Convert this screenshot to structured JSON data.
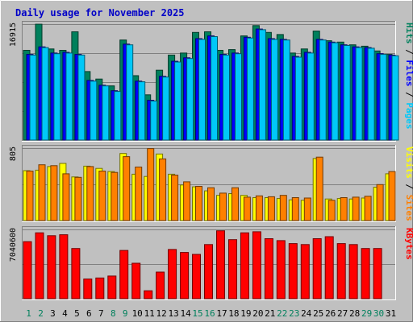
{
  "chart_data": {
    "type": "bar",
    "title": "Daily usage for November 2025",
    "categories": [
      "1",
      "2",
      "3",
      "4",
      "5",
      "6",
      "7",
      "8",
      "9",
      "10",
      "11",
      "12",
      "13",
      "14",
      "15",
      "16",
      "17",
      "18",
      "19",
      "20",
      "21",
      "22",
      "23",
      "24",
      "25",
      "26",
      "27",
      "28",
      "29",
      "30",
      "31"
    ],
    "weekend_categories": [
      "1",
      "2",
      "8",
      "9",
      "15",
      "16",
      "22",
      "23",
      "29",
      "30"
    ],
    "panels": [
      {
        "name": "hits-files-pages",
        "ymax_label": "16915",
        "ylim": [
          0,
          16915
        ],
        "right_labels": [
          {
            "text": "Hits",
            "color": "#00805c"
          },
          {
            "text": "Files",
            "color": "#0000ff"
          },
          {
            "text": "Pages",
            "color": "#00c8f8"
          }
        ],
        "series": [
          {
            "name": "Hits",
            "color": "#00805c",
            "values": [
              13100,
              16900,
              13300,
              13100,
              15800,
              10000,
              8900,
              7900,
              14600,
              9400,
              6600,
              10200,
              12400,
              12700,
              15700,
              15800,
              13100,
              13200,
              15200,
              16700,
              15700,
              15400,
              12700,
              13300,
              15900,
              14500,
              14300,
              13900,
              13700,
              13000,
              12500
            ]
          },
          {
            "name": "Files",
            "color": "#0000ff",
            "values": [
              12500,
              13600,
              12700,
              12800,
              12500,
              8700,
              8000,
              7200,
              14000,
              8600,
              5800,
              9300,
              11500,
              12000,
              14800,
              15200,
              12500,
              12700,
              15000,
              16200,
              14800,
              14700,
              12200,
              12800,
              14700,
              14300,
              13900,
              13600,
              13500,
              12600,
              12400
            ]
          },
          {
            "name": "Pages",
            "color": "#00c8f8",
            "values": [
              12400,
              13500,
              12600,
              12700,
              12400,
              8600,
              7900,
              7100,
              13900,
              8500,
              5700,
              9200,
              11400,
              11900,
              14700,
              15100,
              12400,
              12600,
              14900,
              16100,
              14700,
              14600,
              12100,
              12700,
              14600,
              14200,
              13800,
              13500,
              13400,
              12500,
              12300
            ]
          }
        ]
      },
      {
        "name": "visits-sites",
        "ymax_label": "805",
        "ylim": [
          0,
          805
        ],
        "right_labels": [
          {
            "text": "Visits",
            "color": "#ffff00"
          },
          {
            "text": "Sites",
            "color": "#ff8000"
          }
        ],
        "series": [
          {
            "name": "Visits",
            "color": "#ffff00",
            "values": [
              555,
              560,
              600,
              635,
              485,
              605,
              580,
              545,
              745,
              515,
              490,
              740,
              515,
              395,
              375,
              330,
              280,
              300,
              280,
              255,
              255,
              245,
              230,
              225,
              690,
              240,
              245,
              240,
              250,
              370,
              520
            ]
          },
          {
            "name": "Sites",
            "color": "#ff8000",
            "values": [
              550,
              620,
              610,
              520,
              480,
              600,
              550,
              535,
              710,
              595,
              800,
              685,
              505,
              430,
              380,
              365,
              305,
              365,
              260,
              275,
              265,
              280,
              255,
              250,
              705,
              225,
              255,
              260,
              270,
              400,
              545
            ]
          }
        ]
      },
      {
        "name": "kbytes",
        "ymax_label": "7040600",
        "ylim": [
          0,
          7040600
        ],
        "right_labels": [
          {
            "text": "KBytes",
            "color": "#ff0000"
          }
        ],
        "series": [
          {
            "name": "KBytes",
            "color": "#ff0000",
            "values": [
              5800000,
              6700000,
              6400000,
              6500000,
              5100000,
              2000000,
              2100000,
              2300000,
              4900000,
              3600000,
              800000,
              2700000,
              5000000,
              4700000,
              4500000,
              5500000,
              6900000,
              6000000,
              6700000,
              6800000,
              6100000,
              5900000,
              5600000,
              5500000,
              6100000,
              6300000,
              5600000,
              5500000,
              5100000,
              5100000,
              0
            ]
          }
        ]
      }
    ]
  }
}
